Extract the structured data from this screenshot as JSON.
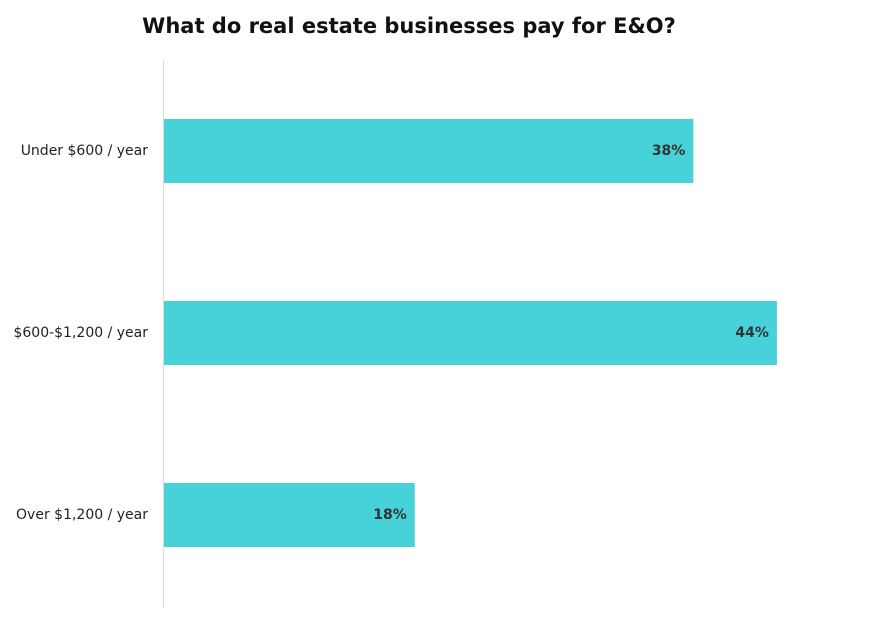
{
  "chart_data": {
    "type": "bar",
    "orientation": "horizontal",
    "title": "What do real estate businesses pay for E&O?",
    "categories": [
      "Under $600 / year",
      "$600-$1,200 / year",
      "Over $1,200 / year"
    ],
    "values": [
      38,
      44,
      18
    ],
    "value_labels": [
      "38%",
      "44%",
      "18%"
    ],
    "color": "#47d1d8"
  }
}
